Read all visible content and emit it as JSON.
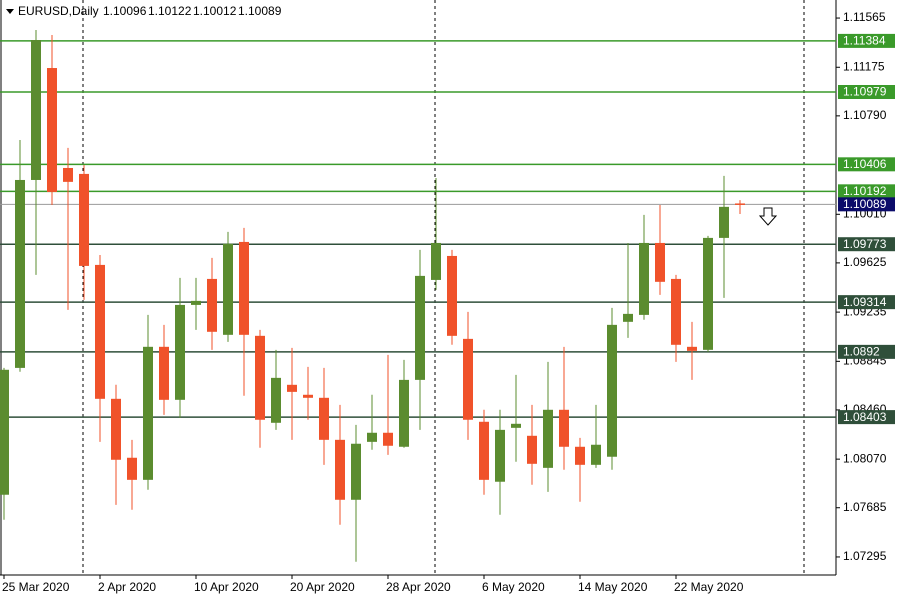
{
  "chart_data": {
    "type": "candlestick",
    "title": "EURUSD,Daily",
    "categories": [
      "25 Mar 2020",
      null,
      null,
      null,
      null,
      null,
      "2 Apr 2020",
      null,
      null,
      null,
      null,
      null,
      "10 Apr 2020",
      null,
      null,
      null,
      null,
      null,
      "20 Apr 2020",
      null,
      null,
      null,
      null,
      null,
      "28 Apr 2020",
      null,
      null,
      null,
      null,
      null,
      "6 May 2020",
      null,
      null,
      null,
      null,
      null,
      "14 May 2020",
      null,
      null,
      null,
      null,
      null,
      "22 May 2020",
      null,
      null,
      null,
      null
    ],
    "open": [
      1.07788,
      1.08793,
      1.10282,
      1.11169,
      1.10377,
      1.1033,
      1.09609,
      1.08548,
      1.08081,
      1.07906,
      1.0896,
      1.0854,
      1.09292,
      1.09498,
      1.09055,
      1.09791,
      1.09047,
      1.08358,
      1.08659,
      1.0858,
      1.08556,
      1.08223,
      1.07748,
      1.08207,
      1.08279,
      1.08168,
      1.08698,
      1.0949,
      1.0968,
      1.09023,
      1.08366,
      1.07891,
      1.08318,
      1.08255,
      1.08001,
      1.08461,
      1.08168,
      1.08025,
      1.08089,
      1.09158,
      1.09213,
      1.09783,
      1.09498,
      1.0896,
      1.08936,
      1.09823,
      1.10096
    ],
    "high": [
      1.08793,
      1.10599,
      1.1147,
      1.11431,
      1.10536,
      1.10401,
      1.09688,
      1.08659,
      1.08223,
      1.09213,
      1.09134,
      1.09506,
      1.09506,
      1.09665,
      1.09871,
      1.09902,
      1.09094,
      1.08936,
      1.08952,
      1.08801,
      1.08793,
      1.085,
      1.08342,
      1.0858,
      1.08896,
      1.08857,
      1.09728,
      1.10298,
      1.09728,
      1.09237,
      1.08461,
      1.08461,
      1.08738,
      1.085,
      1.08841,
      1.0896,
      1.08239,
      1.085,
      1.09269,
      1.09783,
      1.10005,
      1.10084,
      1.0953,
      1.09158,
      1.09839,
      1.10314,
      1.10122
    ],
    "low": [
      1.0759,
      1.08762,
      1.0953,
      1.10084,
      1.09253,
      1.09332,
      1.08207,
      1.07708,
      1.07669,
      1.07827,
      1.08421,
      1.08397,
      1.09094,
      1.08936,
      1.08999,
      1.08572,
      1.0816,
      1.08302,
      1.08223,
      1.08382,
      1.08025,
      1.0755,
      1.07257,
      1.08144,
      1.08104,
      1.0816,
      1.08302,
      1.09411,
      1.08976,
      1.08223,
      1.07788,
      1.07629,
      1.08049,
      1.07867,
      1.07811,
      1.07986,
      1.07732,
      1.08001,
      1.07986,
      1.09031,
      1.09174,
      1.09372,
      1.08841,
      1.08698,
      1.0892,
      1.09348,
      1.10012
    ],
    "close": [
      1.08778,
      1.10282,
      1.11391,
      1.10187,
      1.10267,
      1.09601,
      1.08548,
      1.08065,
      1.07906,
      1.0896,
      1.0854,
      1.09292,
      1.09324,
      1.09079,
      1.09776,
      1.09055,
      1.08382,
      1.08714,
      1.08603,
      1.08556,
      1.08223,
      1.07748,
      1.08192,
      1.08279,
      1.08176,
      1.08698,
      1.09522,
      1.09783,
      1.09047,
      1.08382,
      1.07906,
      1.08302,
      1.0835,
      1.08033,
      1.08461,
      1.08168,
      1.08025,
      1.08184,
      1.09134,
      1.09221,
      1.09783,
      1.09475,
      1.08976,
      1.08928,
      1.09823,
      1.10069,
      1.10089
    ],
    "up_color": "#5b8c2f",
    "down_color": "#f0522a",
    "ylim": [
      1.07152,
      1.11708
    ],
    "yticks": [
      1.11565,
      1.11175,
      {
        "value": 1.1079,
        "label": "1.10790"
      },
      {
        "value": 1.1001,
        "label": "1.10010"
      },
      1.09625,
      1.09235,
      1.08845,
      {
        "value": 1.0846,
        "label": "1.08460"
      },
      {
        "value": 1.0807,
        "label": "1.08070"
      },
      1.07685,
      1.07295
    ],
    "levels": [
      {
        "value": 1.11384,
        "color": "#3a9a2a"
      },
      {
        "value": 1.10979,
        "color": "#3a9a2a"
      },
      {
        "value": 1.10406,
        "color": "#3a9a2a"
      },
      {
        "value": 1.10192,
        "color": "#3a9a2a"
      },
      {
        "value": 1.09773,
        "color": "#2f4f3a"
      },
      {
        "value": 1.09314,
        "color": "#2f4f3a"
      },
      {
        "value": 1.0892,
        "color": "#2f4f3a"
      },
      {
        "value": 1.08403,
        "color": "#2f4f3a"
      }
    ],
    "price_color": "#0c0c6a"
  }
}
